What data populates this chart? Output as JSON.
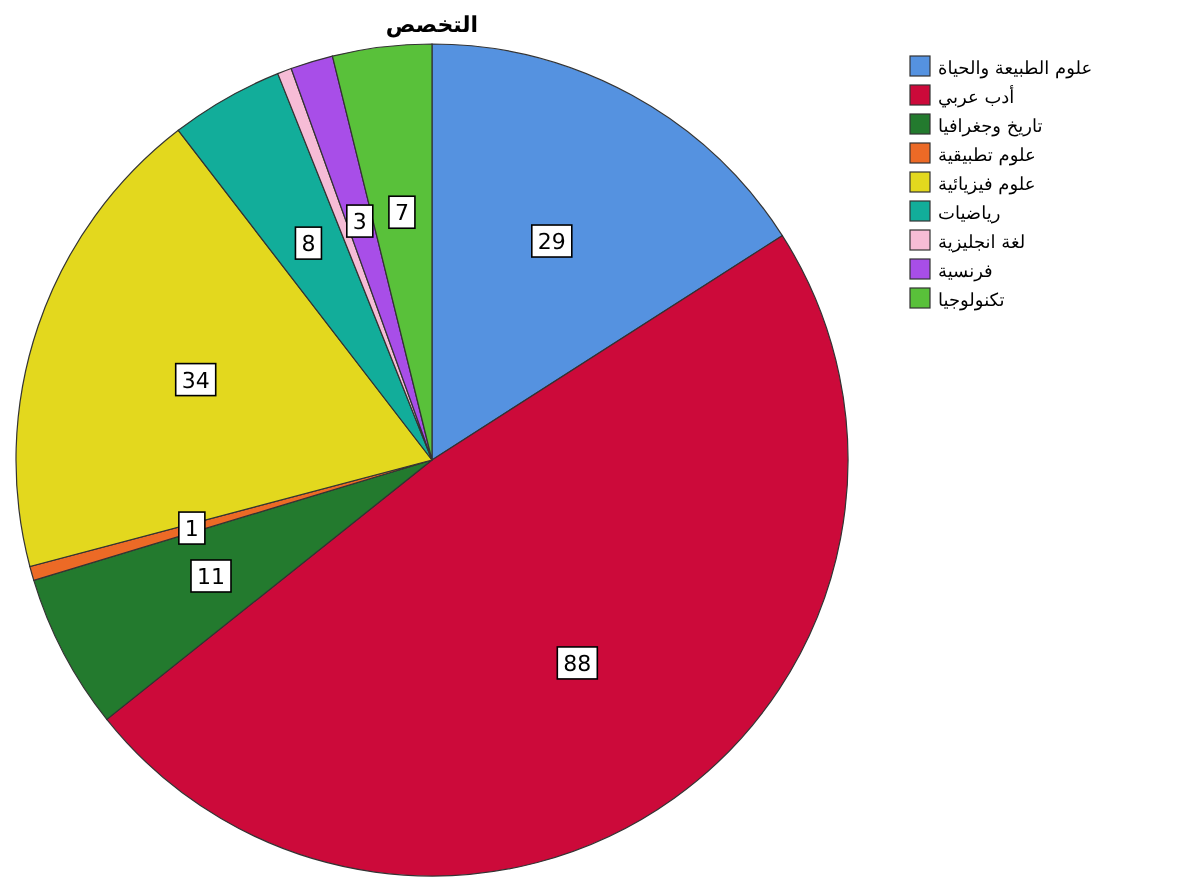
{
  "chart_data": {
    "type": "pie",
    "title": "التخصص",
    "categories": [
      "علوم الطبيعة والحياة",
      "أدب عربي",
      "تاريخ وجغرافيا",
      "علوم تطبيقية",
      "علوم فيزيائية",
      "رياضيات",
      "لغة انجليزية",
      "فرنسية",
      "تكنولوجيا"
    ],
    "values": [
      29,
      88,
      11,
      1,
      34,
      8,
      1,
      3,
      7
    ],
    "value_labels": [
      "29",
      "88",
      "11",
      "1",
      "34",
      "8",
      null,
      "3",
      "7"
    ],
    "colors": [
      "#5592e0",
      "#cc0a3a",
      "#237a2e",
      "#ec6a26",
      "#e3d81e",
      "#12ad9a",
      "#f6bcd6",
      "#a84ee8",
      "#59c13a"
    ],
    "legend": "top right"
  }
}
